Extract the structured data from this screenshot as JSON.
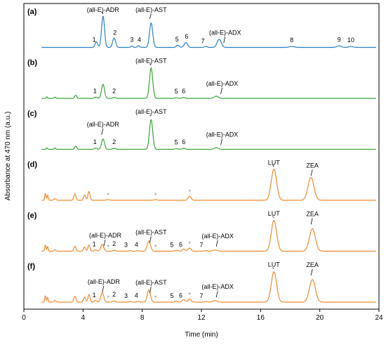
{
  "chart_data": {
    "type": "line",
    "xlabel": "Time (min)",
    "ylabel": "Absorbance at 470 nm (a.u.)",
    "xlim": [
      0,
      24
    ],
    "xticks": [
      "0",
      "4",
      "8",
      "12",
      "16",
      "20",
      "24"
    ],
    "colors": {
      "blue": "#2a7fc8",
      "green": "#3aa33a",
      "orange": "#f08a2e"
    },
    "panels": [
      {
        "letter": "(a)",
        "color": "blue",
        "baseline_noise": 0.1,
        "peaks": [
          {
            "t": 4.9,
            "h": 0.18,
            "w": 0.09
          },
          {
            "t": 5.35,
            "h": 1.0,
            "w": 0.1
          },
          {
            "t": 6.1,
            "h": 0.3,
            "w": 0.1
          },
          {
            "t": 7.3,
            "h": 0.04,
            "w": 0.08
          },
          {
            "t": 7.75,
            "h": 0.06,
            "w": 0.08
          },
          {
            "t": 8.6,
            "h": 0.78,
            "w": 0.11
          },
          {
            "t": 10.4,
            "h": 0.07,
            "w": 0.1
          },
          {
            "t": 10.95,
            "h": 0.16,
            "w": 0.11
          },
          {
            "t": 12.3,
            "h": 0.03,
            "w": 0.1
          },
          {
            "t": 13.2,
            "h": 0.26,
            "w": 0.14
          },
          {
            "t": 18.1,
            "h": 0.03,
            "w": 0.18
          },
          {
            "t": 21.3,
            "h": 0.05,
            "w": 0.15
          },
          {
            "t": 22.1,
            "h": 0.03,
            "w": 0.15
          }
        ],
        "labels": [
          {
            "text": "(all-E)-ADR",
            "t": 5.35,
            "dy": 0
          },
          {
            "text": "(all-E)-AST",
            "t": 8.6,
            "dy": 0
          },
          {
            "text": "(all-E)-ADX",
            "t": 13.6,
            "dy": 0
          },
          {
            "text": "1",
            "t": 4.75,
            "dy": 0
          },
          {
            "text": "2",
            "t": 6.15,
            "dy": 0
          },
          {
            "text": "3",
            "t": 7.3,
            "dy": 0
          },
          {
            "text": "4",
            "t": 7.8,
            "dy": 0
          },
          {
            "text": "5",
            "t": 10.35,
            "dy": 0
          },
          {
            "text": "6",
            "t": 11.0,
            "dy": 0
          },
          {
            "text": "7",
            "t": 12.1,
            "dy": 0
          },
          {
            "text": "8",
            "t": 18.1,
            "dy": 0
          },
          {
            "text": "9",
            "t": 21.3,
            "dy": 0
          },
          {
            "text": "10",
            "t": 22.1,
            "dy": 0
          }
        ]
      },
      {
        "letter": "(b)",
        "color": "green",
        "baseline_noise": 0.06,
        "peaks": [
          {
            "t": 1.55,
            "h": 0.05,
            "w": 0.04
          },
          {
            "t": 2.1,
            "h": 0.04,
            "w": 0.06
          },
          {
            "t": 3.5,
            "h": 0.1,
            "w": 0.07
          },
          {
            "t": 4.85,
            "h": 0.04,
            "w": 0.08
          },
          {
            "t": 5.35,
            "h": 0.45,
            "w": 0.1
          },
          {
            "t": 6.1,
            "h": 0.03,
            "w": 0.1
          },
          {
            "t": 8.6,
            "h": 0.97,
            "w": 0.11
          },
          {
            "t": 10.3,
            "h": 0.02,
            "w": 0.1
          },
          {
            "t": 10.8,
            "h": 0.03,
            "w": 0.1
          },
          {
            "t": 13.0,
            "h": 0.07,
            "w": 0.14
          }
        ],
        "labels": [
          {
            "text": "(all-E)-AST",
            "t": 8.6,
            "dy": 0
          },
          {
            "text": "(all-E)-ADX",
            "t": 13.4,
            "dy": 0
          },
          {
            "text": "1",
            "t": 4.8,
            "dy": 0
          },
          {
            "text": "2",
            "t": 6.1,
            "dy": 0
          },
          {
            "text": "5",
            "t": 10.3,
            "dy": 0
          },
          {
            "text": "6",
            "t": 10.8,
            "dy": 0
          }
        ]
      },
      {
        "letter": "(c)",
        "color": "green",
        "baseline_noise": 0.06,
        "peaks": [
          {
            "t": 1.55,
            "h": 0.05,
            "w": 0.04
          },
          {
            "t": 2.1,
            "h": 0.04,
            "w": 0.06
          },
          {
            "t": 3.5,
            "h": 0.1,
            "w": 0.07
          },
          {
            "t": 4.85,
            "h": 0.04,
            "w": 0.08
          },
          {
            "t": 5.35,
            "h": 0.33,
            "w": 0.1
          },
          {
            "t": 6.1,
            "h": 0.03,
            "w": 0.1
          },
          {
            "t": 8.6,
            "h": 0.95,
            "w": 0.11
          },
          {
            "t": 10.3,
            "h": 0.02,
            "w": 0.1
          },
          {
            "t": 10.8,
            "h": 0.03,
            "w": 0.1
          },
          {
            "t": 13.0,
            "h": 0.05,
            "w": 0.14
          }
        ],
        "labels": [
          {
            "text": "(all-E)-ADR",
            "t": 5.35,
            "dy": 0
          },
          {
            "text": "(all-E)-AST",
            "t": 8.6,
            "dy": 0
          },
          {
            "text": "(all-E)-ADX",
            "t": 13.4,
            "dy": 0
          },
          {
            "text": "1",
            "t": 4.8,
            "dy": 0
          },
          {
            "text": "2",
            "t": 6.1,
            "dy": 0
          },
          {
            "text": "5",
            "t": 10.3,
            "dy": 0
          },
          {
            "text": "6",
            "t": 10.8,
            "dy": 0
          }
        ]
      },
      {
        "letter": "(d)",
        "color": "orange",
        "baseline_noise": 0.05,
        "peaks": [
          {
            "t": 1.45,
            "h": 0.22,
            "w": 0.04
          },
          {
            "t": 1.6,
            "h": 0.16,
            "w": 0.04
          },
          {
            "t": 2.1,
            "h": 0.05,
            "w": 0.07
          },
          {
            "t": 3.45,
            "h": 0.2,
            "w": 0.07
          },
          {
            "t": 4.1,
            "h": 0.17,
            "w": 0.07
          },
          {
            "t": 4.4,
            "h": 0.28,
            "w": 0.07
          },
          {
            "t": 5.7,
            "h": 0.02,
            "w": 0.1
          },
          {
            "t": 8.9,
            "h": 0.02,
            "w": 0.1
          },
          {
            "t": 11.2,
            "h": 0.13,
            "w": 0.1
          },
          {
            "t": 16.9,
            "h": 1.0,
            "w": 0.18
          },
          {
            "t": 19.4,
            "h": 0.73,
            "w": 0.2
          }
        ],
        "labels": [
          {
            "text": "LUT",
            "t": 16.9,
            "dy": 0
          },
          {
            "text": "ZEA",
            "t": 19.5,
            "dy": 0
          },
          {
            "text": "*",
            "t": 5.7,
            "dy": 0
          },
          {
            "text": "*",
            "t": 8.9,
            "dy": 0
          },
          {
            "text": "*",
            "t": 11.2,
            "dy": 0
          }
        ]
      },
      {
        "letter": "(e)",
        "color": "orange",
        "baseline_noise": 0.05,
        "peaks": [
          {
            "t": 1.45,
            "h": 0.2,
            "w": 0.04
          },
          {
            "t": 1.6,
            "h": 0.15,
            "w": 0.04
          },
          {
            "t": 2.1,
            "h": 0.05,
            "w": 0.07
          },
          {
            "t": 3.45,
            "h": 0.16,
            "w": 0.07
          },
          {
            "t": 4.1,
            "h": 0.13,
            "w": 0.07
          },
          {
            "t": 4.4,
            "h": 0.2,
            "w": 0.07
          },
          {
            "t": 4.85,
            "h": 0.05,
            "w": 0.08
          },
          {
            "t": 5.3,
            "h": 0.22,
            "w": 0.1
          },
          {
            "t": 6.1,
            "h": 0.03,
            "w": 0.1
          },
          {
            "t": 7.2,
            "h": 0.02,
            "w": 0.08
          },
          {
            "t": 7.7,
            "h": 0.02,
            "w": 0.08
          },
          {
            "t": 8.45,
            "h": 0.33,
            "w": 0.11
          },
          {
            "t": 10.3,
            "h": 0.03,
            "w": 0.1
          },
          {
            "t": 10.8,
            "h": 0.07,
            "w": 0.1
          },
          {
            "t": 11.2,
            "h": 0.1,
            "w": 0.1
          },
          {
            "t": 12.3,
            "h": 0.02,
            "w": 0.1
          },
          {
            "t": 12.9,
            "h": 0.04,
            "w": 0.14
          },
          {
            "t": 16.9,
            "h": 0.98,
            "w": 0.18
          },
          {
            "t": 19.5,
            "h": 0.72,
            "w": 0.2
          }
        ],
        "labels": [
          {
            "text": "(all-E)-ADR",
            "t": 5.5,
            "dy": 0
          },
          {
            "text": "(all-E)-AST",
            "t": 8.6,
            "dy": 0
          },
          {
            "text": "(all-E)-ADX",
            "t": 13.1,
            "dy": 0
          },
          {
            "text": "LUT",
            "t": 16.9,
            "dy": 0
          },
          {
            "text": "ZEA",
            "t": 19.5,
            "dy": 0
          },
          {
            "text": "1",
            "t": 4.75,
            "dy": 0
          },
          {
            "text": "*",
            "t": 5.7,
            "dy": 0
          },
          {
            "text": "2",
            "t": 6.1,
            "dy": 0
          },
          {
            "text": "3",
            "t": 6.9,
            "dy": 0
          },
          {
            "text": "4",
            "t": 7.6,
            "dy": 0
          },
          {
            "text": "*",
            "t": 8.9,
            "dy": 0
          },
          {
            "text": "5",
            "t": 10.0,
            "dy": 0
          },
          {
            "text": "6",
            "t": 10.6,
            "dy": 0
          },
          {
            "text": "*",
            "t": 11.2,
            "dy": 0
          },
          {
            "text": "7",
            "t": 12.0,
            "dy": 0
          }
        ]
      },
      {
        "letter": "(f)",
        "color": "orange",
        "baseline_noise": 0.05,
        "peaks": [
          {
            "t": 1.45,
            "h": 0.2,
            "w": 0.04
          },
          {
            "t": 1.6,
            "h": 0.15,
            "w": 0.04
          },
          {
            "t": 2.1,
            "h": 0.05,
            "w": 0.07
          },
          {
            "t": 3.45,
            "h": 0.19,
            "w": 0.07
          },
          {
            "t": 4.1,
            "h": 0.16,
            "w": 0.07
          },
          {
            "t": 4.4,
            "h": 0.24,
            "w": 0.07
          },
          {
            "t": 4.85,
            "h": 0.06,
            "w": 0.08
          },
          {
            "t": 5.3,
            "h": 0.3,
            "w": 0.1
          },
          {
            "t": 6.1,
            "h": 0.04,
            "w": 0.1
          },
          {
            "t": 7.2,
            "h": 0.02,
            "w": 0.08
          },
          {
            "t": 7.7,
            "h": 0.02,
            "w": 0.08
          },
          {
            "t": 8.45,
            "h": 0.39,
            "w": 0.11
          },
          {
            "t": 10.3,
            "h": 0.03,
            "w": 0.1
          },
          {
            "t": 10.8,
            "h": 0.08,
            "w": 0.1
          },
          {
            "t": 11.2,
            "h": 0.1,
            "w": 0.1
          },
          {
            "t": 12.3,
            "h": 0.02,
            "w": 0.1
          },
          {
            "t": 12.9,
            "h": 0.05,
            "w": 0.14
          },
          {
            "t": 16.9,
            "h": 0.97,
            "w": 0.18
          },
          {
            "t": 19.5,
            "h": 0.72,
            "w": 0.2
          }
        ],
        "labels": [
          {
            "text": "(all-E)-ADR",
            "t": 5.4,
            "dy": 0
          },
          {
            "text": "(all-E)-AST",
            "t": 8.6,
            "dy": 0
          },
          {
            "text": "(all-E)-ADX",
            "t": 13.1,
            "dy": 0
          },
          {
            "text": "LUT",
            "t": 16.9,
            "dy": 0
          },
          {
            "text": "ZEA",
            "t": 19.5,
            "dy": 0
          },
          {
            "text": "1",
            "t": 4.75,
            "dy": 0
          },
          {
            "text": "*",
            "t": 5.7,
            "dy": 0
          },
          {
            "text": "2",
            "t": 6.1,
            "dy": 0
          },
          {
            "text": "3",
            "t": 6.9,
            "dy": 0
          },
          {
            "text": "4",
            "t": 7.6,
            "dy": 0
          },
          {
            "text": "*",
            "t": 8.9,
            "dy": 0
          },
          {
            "text": "5",
            "t": 10.0,
            "dy": 0
          },
          {
            "text": "6",
            "t": 10.6,
            "dy": 0
          },
          {
            "text": "*",
            "t": 11.2,
            "dy": 0
          },
          {
            "text": "7",
            "t": 12.0,
            "dy": 0
          }
        ]
      }
    ]
  }
}
